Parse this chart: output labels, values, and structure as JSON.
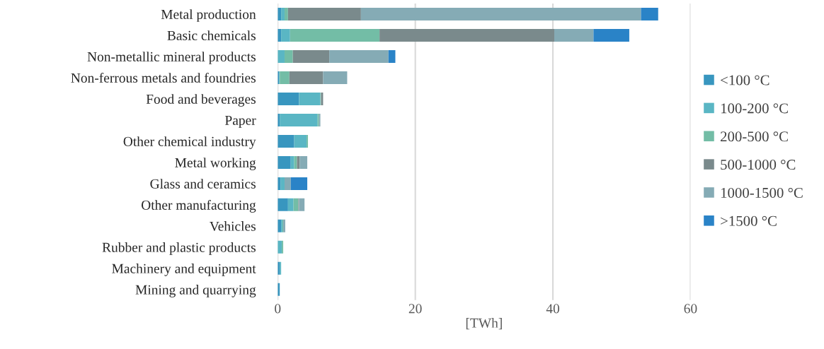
{
  "chart_data": {
    "type": "bar",
    "orientation": "horizontal",
    "stacked": true,
    "categories": [
      "Metal production",
      "Basic chemicals",
      "Non-metallic mineral products",
      "Non-ferrous metals and foundries",
      "Food and beverages",
      "Paper",
      "Other chemical industry",
      "Metal working",
      "Glass and ceramics",
      "Other manufacturing",
      "Vehicles",
      "Rubber and plastic products",
      "Machinery and equipment",
      "Mining and quarrying"
    ],
    "series": [
      {
        "name": "<100 °C",
        "color": "#3896bf",
        "values": [
          0.5,
          0.5,
          0,
          0.2,
          3.1,
          0.3,
          2.4,
          1.9,
          0.4,
          1.5,
          0.5,
          0,
          0.3,
          0.3
        ]
      },
      {
        "name": "100-200 °C",
        "color": "#5ab6c4",
        "values": [
          0.5,
          1.3,
          1.0,
          0.1,
          3.1,
          5.5,
          1.8,
          0.5,
          0.6,
          0.8,
          0.2,
          0.6,
          0.2,
          0
        ]
      },
      {
        "name": "200-500 °C",
        "color": "#73bda6",
        "values": [
          0.5,
          13.0,
          1.2,
          1.4,
          0.1,
          0.2,
          0.2,
          0.4,
          0,
          0.7,
          0.1,
          0.2,
          0,
          0
        ]
      },
      {
        "name": "500-1000 °C",
        "color": "#7a8a8c",
        "values": [
          10.6,
          25.4,
          5.3,
          4.9,
          0.3,
          0,
          0,
          0.4,
          0,
          0.1,
          0,
          0,
          0,
          0
        ]
      },
      {
        "name": "1000-1500 °C",
        "color": "#85abb5",
        "values": [
          40.7,
          5.7,
          8.6,
          3.5,
          0,
          0.2,
          0,
          1.1,
          0.9,
          0.8,
          0.3,
          0,
          0,
          0
        ]
      },
      {
        "name": ">1500 °C",
        "color": "#2a83c7",
        "values": [
          2.5,
          5.2,
          1.0,
          0,
          0,
          0,
          0,
          0,
          2.4,
          0,
          0,
          0,
          0,
          0
        ]
      }
    ],
    "xlabel": "[TWh]",
    "xlim": [
      0,
      60
    ],
    "xticks": [
      0,
      20,
      40,
      60
    ],
    "grid": "x",
    "legend": "right"
  }
}
